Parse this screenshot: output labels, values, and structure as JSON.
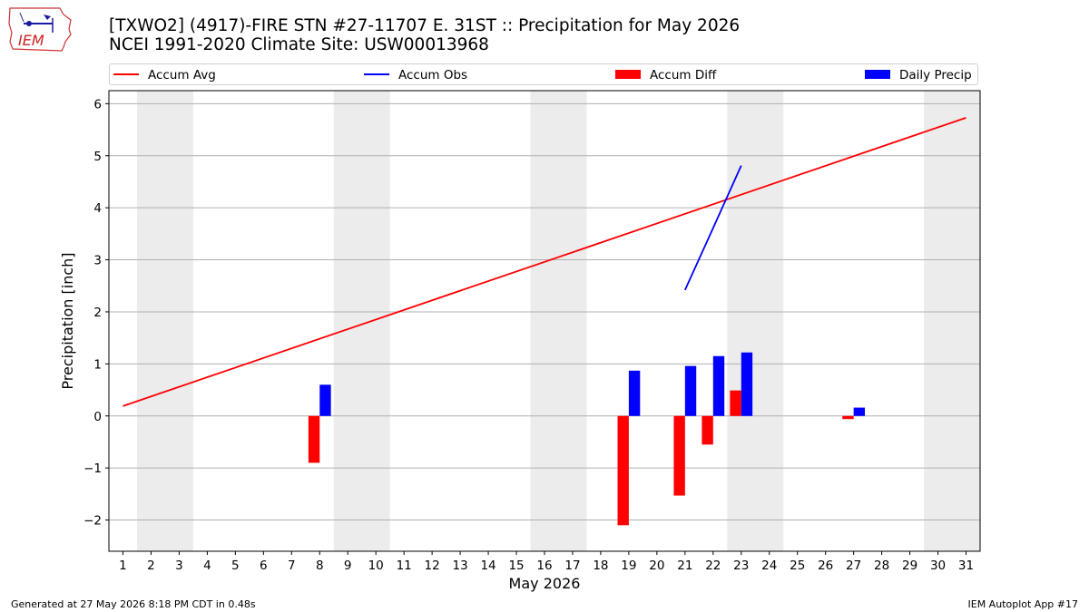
{
  "logo": {
    "text": "IEM"
  },
  "header": {
    "title_line1": "[TXWO2] (4917)-FIRE STN #27-11707 E. 31ST :: Precipitation for May 2026",
    "title_line2": "NCEI 1991-2020 Climate Site: USW00013968"
  },
  "legend": {
    "placement": "top",
    "items": [
      {
        "label": "Accum Avg",
        "kind": "line",
        "color": "#ff0000"
      },
      {
        "label": "Accum Obs",
        "kind": "line",
        "color": "#0000ff"
      },
      {
        "label": "Accum Diff",
        "kind": "bar",
        "color": "#ff0000"
      },
      {
        "label": "Daily Precip",
        "kind": "bar",
        "color": "#0000ff"
      }
    ]
  },
  "chart_data": {
    "type": "bar",
    "xlabel": "May 2026",
    "ylabel": "Precipitation [inch]",
    "x_ticks": [
      "1",
      "2",
      "3",
      "4",
      "5",
      "6",
      "7",
      "8",
      "9",
      "10",
      "11",
      "12",
      "13",
      "14",
      "15",
      "16",
      "17",
      "18",
      "19",
      "20",
      "21",
      "22",
      "23",
      "24",
      "25",
      "26",
      "27",
      "28",
      "29",
      "30",
      "31"
    ],
    "y_ticks": [
      "−2",
      "−1",
      "0",
      "1",
      "2",
      "3",
      "4",
      "5",
      "6"
    ],
    "ylim": [
      -2.6,
      6.25
    ],
    "xlim": [
      0.5,
      31.5
    ],
    "grid": "horizontal",
    "weekend_shading": [
      [
        1.5,
        3.5
      ],
      [
        8.5,
        10.5
      ],
      [
        15.5,
        17.5
      ],
      [
        22.5,
        24.5
      ],
      [
        29.5,
        31.5
      ]
    ],
    "series": [
      {
        "name": "Accum Avg",
        "kind": "line",
        "color": "#ff0000",
        "x": [
          1,
          31
        ],
        "values": [
          0.19,
          5.73
        ]
      },
      {
        "name": "Accum Obs",
        "kind": "line",
        "color": "#0000ff",
        "x": [
          21,
          22,
          23
        ],
        "values": [
          2.42,
          3.61,
          4.81
        ]
      },
      {
        "name": "Accum Diff",
        "kind": "bar",
        "color": "#ff0000",
        "x": [
          8,
          19,
          21,
          22,
          23,
          27
        ],
        "values": [
          -0.9,
          -2.1,
          -1.53,
          -0.55,
          0.49,
          -0.06
        ]
      },
      {
        "name": "Daily Precip",
        "kind": "bar",
        "color": "#0000ff",
        "x": [
          8,
          19,
          21,
          22,
          23,
          27
        ],
        "values": [
          0.6,
          0.87,
          0.96,
          1.15,
          1.22,
          0.16
        ]
      }
    ]
  },
  "footer": {
    "generated": "Generated at 27 May 2026 8:18 PM CDT in 0.48s",
    "app": "IEM Autoplot App #17"
  }
}
